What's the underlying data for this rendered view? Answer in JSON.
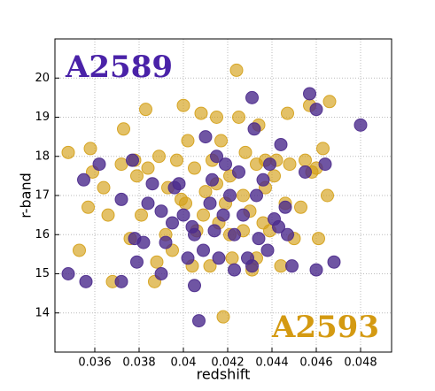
{
  "chart_data": {
    "type": "scatter",
    "x_label": "redshift",
    "y_label": "r-band",
    "annotations": [
      {
        "text": "A2589",
        "color": "#4a22a8"
      },
      {
        "text": "A2593",
        "color": "#d49a12"
      }
    ],
    "xlim": [
      0.0342,
      0.0494
    ],
    "ylim": [
      13,
      21
    ],
    "xticks": [
      0.036,
      0.038,
      0.04,
      0.042,
      0.044,
      0.046,
      0.048
    ],
    "yticks": [
      14,
      15,
      16,
      17,
      18,
      19,
      20
    ],
    "grid": true,
    "series": [
      {
        "name": "A2593",
        "color": "#d4a017",
        "x": [
          0.0348,
          0.0353,
          0.0358,
          0.0357,
          0.0359,
          0.0364,
          0.0366,
          0.0368,
          0.0372,
          0.0373,
          0.0376,
          0.0378,
          0.0379,
          0.0381,
          0.0383,
          0.0384,
          0.0387,
          0.0388,
          0.0389,
          0.0392,
          0.0393,
          0.0395,
          0.0397,
          0.0399,
          0.04,
          0.0402,
          0.0404,
          0.0405,
          0.0406,
          0.0408,
          0.041,
          0.0412,
          0.0413,
          0.0415,
          0.0416,
          0.0417,
          0.0418,
          0.0419,
          0.0421,
          0.0422,
          0.0424,
          0.0425,
          0.0427,
          0.0428,
          0.043,
          0.0431,
          0.0433,
          0.0434,
          0.0436,
          0.0437,
          0.0439,
          0.0441,
          0.0442,
          0.0444,
          0.0446,
          0.0447,
          0.0448,
          0.045,
          0.0453,
          0.0455,
          0.0457,
          0.0458,
          0.046,
          0.0461,
          0.0463,
          0.0465,
          0.0466,
          0.0401,
          0.0409,
          0.0415,
          0.0421,
          0.0427,
          0.0433,
          0.0437
        ],
        "values": [
          18.1,
          15.6,
          18.2,
          16.7,
          17.6,
          17.2,
          16.5,
          14.8,
          17.8,
          18.7,
          15.9,
          17.9,
          17.5,
          16.5,
          19.2,
          17.7,
          14.8,
          15.3,
          18.0,
          16.0,
          17.2,
          15.6,
          17.9,
          16.9,
          19.3,
          18.4,
          15.2,
          17.7,
          16.1,
          19.1,
          17.1,
          15.2,
          17.9,
          19.0,
          16.3,
          18.4,
          13.9,
          16.8,
          17.5,
          15.4,
          20.2,
          19.0,
          17.0,
          18.1,
          16.6,
          15.1,
          17.8,
          18.8,
          16.3,
          17.9,
          16.1,
          17.5,
          17.9,
          15.2,
          16.8,
          19.1,
          17.8,
          15.9,
          16.7,
          17.9,
          19.3,
          17.6,
          17.7,
          15.9,
          18.2,
          17.0,
          19.4,
          16.8,
          16.5,
          17.3,
          16.0,
          16.1,
          15.4,
          17.2
        ]
      },
      {
        "name": "A2589",
        "color": "#4b2a8c",
        "x": [
          0.0348,
          0.0356,
          0.0355,
          0.0362,
          0.0372,
          0.0372,
          0.0377,
          0.0378,
          0.0379,
          0.0382,
          0.0384,
          0.0386,
          0.039,
          0.039,
          0.0392,
          0.0395,
          0.0396,
          0.0398,
          0.04,
          0.0402,
          0.0404,
          0.0405,
          0.0407,
          0.0409,
          0.041,
          0.0412,
          0.0413,
          0.0414,
          0.0416,
          0.0418,
          0.0419,
          0.0421,
          0.0423,
          0.0425,
          0.0427,
          0.0429,
          0.0431,
          0.0432,
          0.0433,
          0.0434,
          0.0436,
          0.0438,
          0.0439,
          0.0441,
          0.0443,
          0.0444,
          0.0446,
          0.0447,
          0.0449,
          0.0455,
          0.0457,
          0.046,
          0.046,
          0.0464,
          0.0468,
          0.048,
          0.0431,
          0.0423,
          0.0415,
          0.0405
        ],
        "values": [
          15.0,
          14.8,
          17.4,
          17.8,
          14.8,
          16.9,
          17.9,
          15.9,
          15.3,
          15.8,
          16.8,
          17.3,
          15.0,
          16.6,
          15.8,
          16.3,
          17.2,
          17.3,
          16.5,
          15.4,
          16.2,
          14.7,
          13.8,
          15.6,
          18.5,
          16.8,
          17.4,
          16.1,
          15.4,
          16.5,
          17.8,
          17.0,
          16.0,
          17.6,
          16.5,
          15.4,
          19.5,
          18.7,
          17.0,
          15.9,
          17.4,
          15.6,
          17.8,
          16.4,
          16.2,
          18.3,
          16.7,
          16.0,
          15.2,
          17.6,
          19.6,
          19.2,
          15.1,
          17.8,
          15.3,
          18.8,
          15.2,
          15.1,
          18.0,
          16.0
        ]
      }
    ]
  }
}
